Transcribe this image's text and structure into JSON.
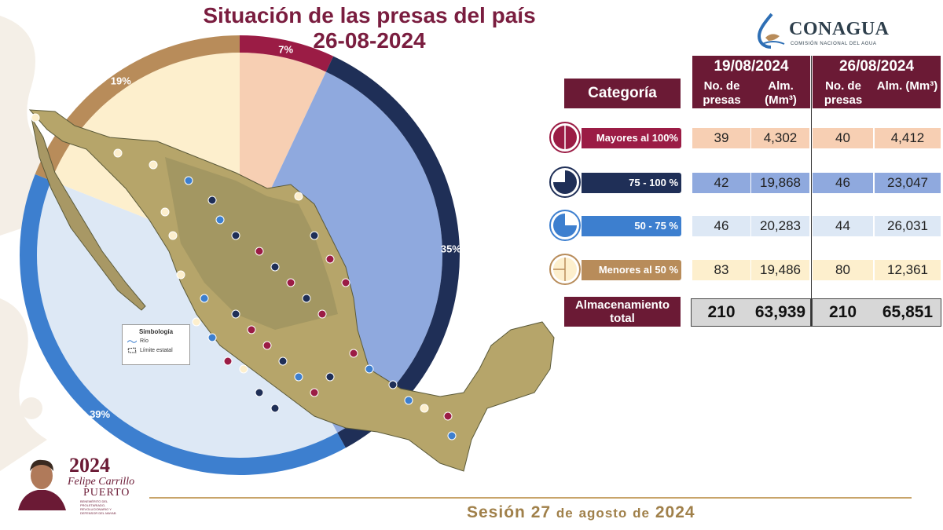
{
  "title_line1": "Situación de las presas del país",
  "title_line2": "26-08-2024",
  "logo": {
    "name": "CONAGUA",
    "subtitle": "COMISIÓN NACIONAL DEL AGUA"
  },
  "colors": {
    "maroon": "#6b1a35",
    "slice_mayores": "#9b1c45",
    "slice_75_100": "#1f2f57",
    "slice_50_75": "#3d7fcf",
    "slice_menores": "#b88c5a",
    "inner_mayores": "#f7cfb3",
    "inner_75_100": "#8fa9de",
    "inner_50_75": "#dde8f5",
    "inner_menores": "#fdefcd"
  },
  "chart_data": {
    "type": "pie",
    "title": "Situación de las presas del país",
    "categories": [
      "Mayores al 100%",
      "75 - 100 %",
      "50 - 75 %",
      "Menores al 50 %"
    ],
    "values": [
      7,
      35,
      39,
      19
    ],
    "labels": [
      "7%",
      "35%",
      "39%",
      "19%"
    ]
  },
  "map_legend": {
    "title": "Simbología",
    "items": [
      "Río",
      "Límite estatal"
    ]
  },
  "table": {
    "category_header": "Categoría",
    "periods": [
      {
        "date": "19/08/2024",
        "col1": "No. de presas",
        "col2": "Alm. (Mm³)"
      },
      {
        "date": "26/08/2024",
        "col1": "No. de presas",
        "col2": "Alm. (Mm³)"
      }
    ],
    "rows": [
      {
        "label": "Mayores al 100%",
        "values": [
          "39",
          "4,302",
          "40",
          "4,412"
        ]
      },
      {
        "label": "75 - 100 %",
        "values": [
          "42",
          "19,868",
          "46",
          "23,047"
        ]
      },
      {
        "label": "50 - 75 %",
        "values": [
          "46",
          "20,283",
          "44",
          "26,031"
        ]
      },
      {
        "label": "Menores al 50 %",
        "values": [
          "83",
          "19,486",
          "80",
          "12,361"
        ]
      }
    ],
    "total": {
      "label": "Almacenamiento total",
      "values": [
        "210",
        "63,939",
        "210",
        "65,851"
      ]
    }
  },
  "footer": {
    "session_prefix": "Sesión",
    "session_day": "27",
    "session_de1": "de",
    "session_month": "agosto",
    "session_de2": "de",
    "session_year": "2024"
  },
  "emblem": {
    "year": "2024",
    "name": "Felipe Carrillo",
    "name2": "PUERTO",
    "motto": "BENEMÉRITO DEL PROLETARIADO, REVOLUCIONARIO Y DEFENSOR DEL MAYAB"
  }
}
